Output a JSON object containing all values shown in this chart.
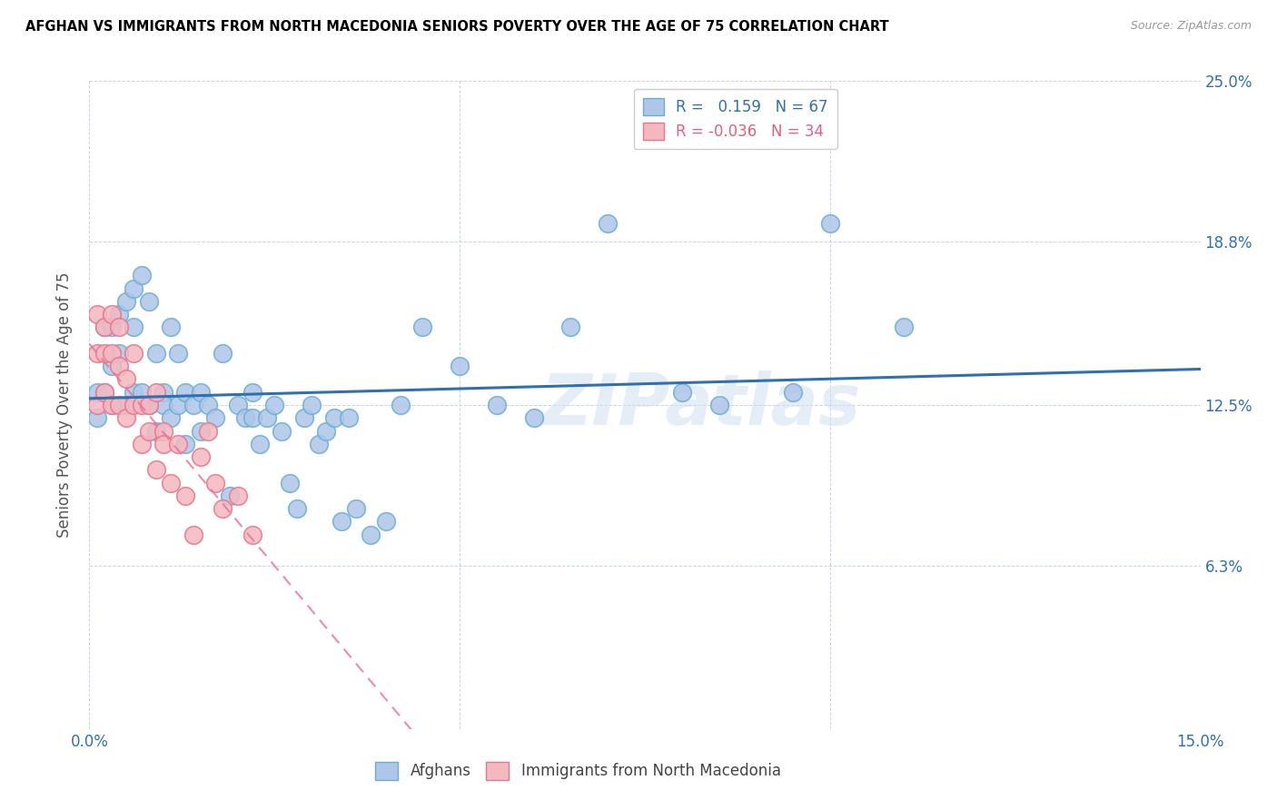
{
  "title": "AFGHAN VS IMMIGRANTS FROM NORTH MACEDONIA SENIORS POVERTY OVER THE AGE OF 75 CORRELATION CHART",
  "source": "Source: ZipAtlas.com",
  "ylabel": "Seniors Poverty Over the Age of 75",
  "xlim": [
    0.0,
    0.15
  ],
  "ylim": [
    0.0,
    0.25
  ],
  "xticks": [
    0.0,
    0.05,
    0.1,
    0.15
  ],
  "xticklabels": [
    "0.0%",
    "",
    "",
    "15.0%"
  ],
  "ytick_positions": [
    0.0,
    0.063,
    0.125,
    0.188,
    0.25
  ],
  "right_ytick_positions": [
    0.063,
    0.125,
    0.188,
    0.25
  ],
  "right_ytick_labels": [
    "6.3%",
    "12.5%",
    "18.8%",
    "25.0%"
  ],
  "legend_r1": "R =   0.159   N = 67",
  "legend_r2": "R = -0.036   N = 34",
  "afghan_color": "#aec6e8",
  "afghan_edge_color": "#6aaed6",
  "macedonia_color": "#f4b8c1",
  "macedonia_edge_color": "#e8768a",
  "trend_afghan_color": "#3070b0",
  "trend_macedonia_color": "#e87090",
  "watermark": "ZIPatlas",
  "afghans_x": [
    0.001,
    0.001,
    0.002,
    0.002,
    0.003,
    0.003,
    0.003,
    0.004,
    0.004,
    0.005,
    0.005,
    0.006,
    0.006,
    0.006,
    0.007,
    0.007,
    0.008,
    0.008,
    0.009,
    0.009,
    0.01,
    0.01,
    0.011,
    0.011,
    0.012,
    0.012,
    0.013,
    0.013,
    0.014,
    0.015,
    0.015,
    0.016,
    0.017,
    0.018,
    0.019,
    0.02,
    0.021,
    0.022,
    0.022,
    0.023,
    0.024,
    0.025,
    0.026,
    0.027,
    0.028,
    0.029,
    0.03,
    0.031,
    0.032,
    0.033,
    0.034,
    0.035,
    0.036,
    0.038,
    0.04,
    0.042,
    0.045,
    0.05,
    0.055,
    0.06,
    0.065,
    0.07,
    0.08,
    0.085,
    0.095,
    0.1,
    0.11
  ],
  "afghans_y": [
    0.13,
    0.12,
    0.155,
    0.13,
    0.155,
    0.14,
    0.125,
    0.16,
    0.145,
    0.165,
    0.125,
    0.17,
    0.155,
    0.13,
    0.175,
    0.13,
    0.165,
    0.125,
    0.145,
    0.115,
    0.13,
    0.125,
    0.155,
    0.12,
    0.145,
    0.125,
    0.13,
    0.11,
    0.125,
    0.13,
    0.115,
    0.125,
    0.12,
    0.145,
    0.09,
    0.125,
    0.12,
    0.13,
    0.12,
    0.11,
    0.12,
    0.125,
    0.115,
    0.095,
    0.085,
    0.12,
    0.125,
    0.11,
    0.115,
    0.12,
    0.08,
    0.12,
    0.085,
    0.075,
    0.08,
    0.125,
    0.155,
    0.14,
    0.125,
    0.12,
    0.155,
    0.195,
    0.13,
    0.125,
    0.13,
    0.195,
    0.155
  ],
  "macedonia_x": [
    0.001,
    0.001,
    0.001,
    0.002,
    0.002,
    0.002,
    0.003,
    0.003,
    0.003,
    0.004,
    0.004,
    0.004,
    0.005,
    0.005,
    0.006,
    0.006,
    0.007,
    0.007,
    0.008,
    0.008,
    0.009,
    0.009,
    0.01,
    0.01,
    0.011,
    0.012,
    0.013,
    0.014,
    0.015,
    0.016,
    0.017,
    0.018,
    0.02,
    0.022
  ],
  "macedonia_y": [
    0.16,
    0.145,
    0.125,
    0.155,
    0.145,
    0.13,
    0.16,
    0.145,
    0.125,
    0.155,
    0.14,
    0.125,
    0.135,
    0.12,
    0.145,
    0.125,
    0.125,
    0.11,
    0.125,
    0.115,
    0.13,
    0.1,
    0.115,
    0.11,
    0.095,
    0.11,
    0.09,
    0.075,
    0.105,
    0.115,
    0.095,
    0.085,
    0.09,
    0.075
  ]
}
